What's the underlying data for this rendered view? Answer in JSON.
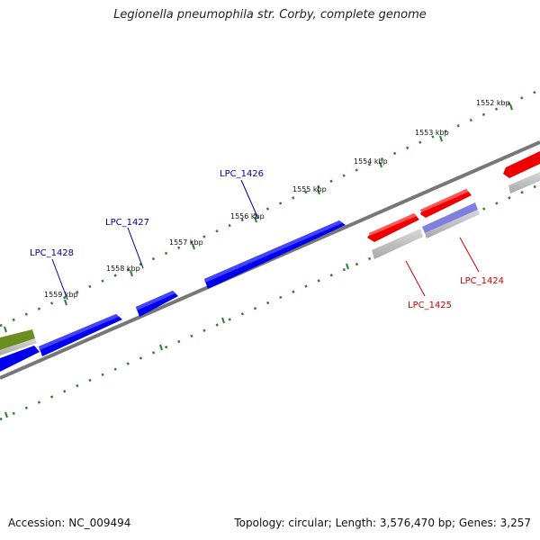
{
  "title": "Legionella pneumophila str. Corby, complete genome",
  "footer": {
    "accession": "Accession: NC_009494",
    "summary": "Topology: circular; Length: 3,576,470 bp; Genes: 3,257"
  },
  "ticks": [
    "1552 kbp",
    "1553 kbp",
    "1554 kbp",
    "1555 kbp",
    "1556 kbp",
    "1557 kbp",
    "1558 kbp",
    "1559 kbp"
  ],
  "genes": [
    "LPC_1426",
    "LPC_1427",
    "LPC_1428",
    "LPC_1424",
    "LPC_1425"
  ],
  "colors": {
    "forward": "#0000ee",
    "reverse": "#ee0000",
    "other_feature": "#6b8e23",
    "backbone": "#777777",
    "ticks": "#2e7d32",
    "label_forward": "#000099",
    "label_reverse": "#cc0000"
  }
}
